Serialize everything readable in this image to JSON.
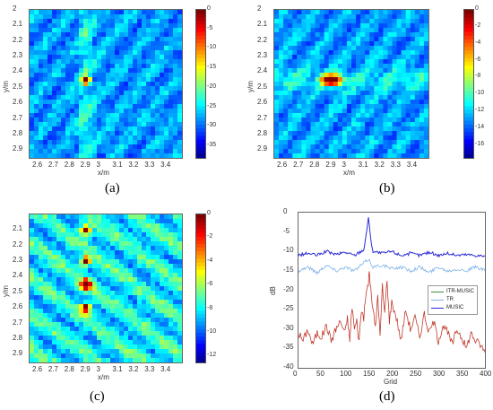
{
  "panels": [
    {
      "label": "(a)"
    },
    {
      "label": "(b)"
    },
    {
      "label": "(c)"
    },
    {
      "label": "(d)"
    }
  ],
  "colors": {
    "heat_low": "#0a0a8c",
    "heat_mid": "#3aa0ff",
    "heat_high": "#7a0d0d"
  },
  "chart_data": [
    {
      "type": "heatmap",
      "xlabel": "x/m",
      "ylabel": "y/m",
      "xticks": [
        "2.6",
        "2.7",
        "2.8",
        "2.9",
        "3",
        "3.1",
        "3.2",
        "3.3",
        "3.4"
      ],
      "yticks": [
        "2",
        "2.1",
        "2.2",
        "2.3",
        "2.4",
        "2.5",
        "2.6",
        "2.7",
        "2.8",
        "2.9"
      ],
      "xlim": [
        2.55,
        3.5
      ],
      "ylim": [
        2.0,
        2.95
      ],
      "colorbar_ticks": [
        "0",
        "-5",
        "-10",
        "-15",
        "-20",
        "-25",
        "-30",
        "-35"
      ],
      "clim": [
        -38,
        0
      ],
      "peak": {
        "x": 2.9,
        "y": 2.45
      }
    },
    {
      "type": "heatmap",
      "xlabel": "x/m",
      "ylabel": "y/m",
      "xticks": [
        "2.6",
        "2.7",
        "2.8",
        "2.9",
        "3",
        "3.1",
        "3.2",
        "3.3",
        "3.4"
      ],
      "yticks": [
        "2",
        "2.1",
        "2.2",
        "2.3",
        "2.4",
        "2.5",
        "2.6",
        "2.7",
        "2.8",
        "2.9"
      ],
      "xlim": [
        2.55,
        3.5
      ],
      "ylim": [
        2.0,
        2.95
      ],
      "colorbar_ticks": [
        "0",
        "-2",
        "-4",
        "-6",
        "-8",
        "-10",
        "-12",
        "-14",
        "-16"
      ],
      "clim": [
        -17.5,
        0
      ],
      "peak": {
        "x": 2.9,
        "y": 2.45
      }
    },
    {
      "type": "heatmap",
      "xlabel": "x/m",
      "ylabel": "y/m",
      "xticks": [
        "2.6",
        "2.7",
        "2.8",
        "2.9",
        "3",
        "3.1",
        "3.2",
        "3.3",
        "3.4"
      ],
      "yticks": [
        "2.1",
        "2.2",
        "2.3",
        "2.4",
        "2.5",
        "2.6",
        "2.7",
        "2.8",
        "2.9"
      ],
      "xlim": [
        2.55,
        3.5
      ],
      "ylim": [
        2.0,
        2.95
      ],
      "colorbar_ticks": [
        "0",
        "-2",
        "-4",
        "-6",
        "-8",
        "-10",
        "-12"
      ],
      "clim": [
        -12.5,
        0
      ],
      "peaks": [
        {
          "x": 2.9,
          "y": 2.1
        },
        {
          "x": 2.9,
          "y": 2.3
        },
        {
          "x": 2.9,
          "y": 2.45
        },
        {
          "x": 2.9,
          "y": 2.6
        }
      ]
    },
    {
      "type": "line",
      "xlabel": "Grid",
      "ylabel": "dB",
      "xticks": [
        "0",
        "50",
        "100",
        "150",
        "200",
        "250",
        "300",
        "350",
        "400"
      ],
      "yticks": [
        "0",
        "-5",
        "-10",
        "-15",
        "-20",
        "-25",
        "-30",
        "-35",
        "-40"
      ],
      "xlim": [
        0,
        400
      ],
      "ylim": [
        -40,
        0
      ],
      "legend_position": "right-middle",
      "series": [
        {
          "name": "ITR-MUSIC",
          "color": "#3a8f3a",
          "x": [
            0,
            10,
            20,
            30,
            40,
            50,
            60,
            70,
            80,
            90,
            100,
            105,
            110,
            115,
            120,
            125,
            130,
            135,
            140,
            145,
            150,
            152,
            155,
            160,
            165,
            170,
            175,
            180,
            185,
            190,
            195,
            200,
            210,
            220,
            230,
            240,
            250,
            260,
            270,
            280,
            290,
            300,
            310,
            320,
            330,
            340,
            350,
            360,
            370,
            380,
            390,
            400
          ],
          "y": [
            -31,
            -33,
            -30,
            -34,
            -31,
            -32,
            -29,
            -33,
            -30,
            -28,
            -31,
            -27,
            -33,
            -24,
            -30,
            -28,
            -33,
            -25,
            -27,
            -21,
            -18,
            -15,
            -20,
            -25,
            -30,
            -21,
            -32,
            -19,
            -26,
            -17,
            -28,
            -23,
            -27,
            -33,
            -25,
            -30,
            -27,
            -32,
            -26,
            -31,
            -28,
            -33,
            -29,
            -31,
            -34,
            -30,
            -32,
            -35,
            -31,
            -33,
            -34,
            -36
          ]
        },
        {
          "name": "TR",
          "color": "#7fb3e8",
          "x": [
            0,
            20,
            40,
            60,
            80,
            100,
            120,
            140,
            150,
            160,
            180,
            200,
            220,
            240,
            260,
            280,
            300,
            320,
            340,
            360,
            380,
            400
          ],
          "y": [
            -15,
            -14,
            -15.5,
            -13.5,
            -15,
            -14,
            -15,
            -13,
            -12,
            -14,
            -13.5,
            -14.5,
            -14,
            -15,
            -14,
            -15.5,
            -14,
            -15,
            -14.5,
            -15,
            -14,
            -15
          ]
        },
        {
          "name": "MUSIC",
          "color": "#2a2ad6",
          "x": [
            0,
            20,
            40,
            60,
            80,
            100,
            120,
            140,
            145,
            150,
            155,
            160,
            180,
            200,
            220,
            240,
            260,
            280,
            300,
            320,
            340,
            360,
            380,
            400
          ],
          "y": [
            -11,
            -10.5,
            -11,
            -10,
            -10.8,
            -10.2,
            -11,
            -9.5,
            -6,
            -1,
            -7,
            -10,
            -10.5,
            -10,
            -11,
            -10.5,
            -11,
            -10.2,
            -11,
            -10.5,
            -11,
            -10.8,
            -11,
            -11.2
          ]
        }
      ]
    }
  ]
}
